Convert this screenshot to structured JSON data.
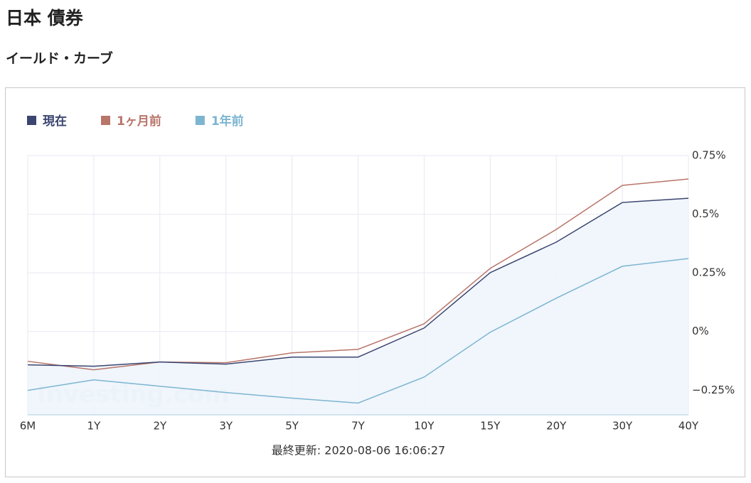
{
  "page": {
    "title": "日本 債券"
  },
  "chart_data": {
    "type": "line",
    "title": "イールド・カーブ",
    "note": "最終更新: 2020-08-06 16:06:27",
    "watermark": "Investing.com",
    "categories": [
      "6M",
      "1Y",
      "2Y",
      "3Y",
      "5Y",
      "7Y",
      "10Y",
      "15Y",
      "20Y",
      "30Y",
      "40Y"
    ],
    "series": [
      {
        "name": "現在",
        "color": "#3b4570",
        "fill_color": "#eef5fc",
        "values": [
          -0.142,
          -0.148,
          -0.13,
          -0.139,
          -0.109,
          -0.109,
          0.015,
          0.251,
          0.381,
          0.55,
          0.568
        ]
      },
      {
        "name": "1ヶ月前",
        "color": "#b8756a",
        "values": [
          -0.127,
          -0.163,
          -0.13,
          -0.133,
          -0.091,
          -0.076,
          0.033,
          0.269,
          0.435,
          0.623,
          0.65
        ]
      },
      {
        "name": "1年前",
        "color": "#7db5d1",
        "values": [
          -0.251,
          -0.206,
          -0.233,
          -0.26,
          -0.284,
          -0.305,
          -0.194,
          -0.003,
          0.142,
          0.278,
          0.311
        ]
      }
    ],
    "ylim": [
      -0.355,
      0.75
    ],
    "yticks": [
      {
        "value": 0.75,
        "label": "0.75%"
      },
      {
        "value": 0.5,
        "label": "0.5%"
      },
      {
        "value": 0.25,
        "label": "0.25%"
      },
      {
        "value": 0,
        "label": "0%"
      },
      {
        "value": -0.25,
        "label": "−0.25%"
      }
    ],
    "grid": true,
    "legend": "top-left"
  }
}
